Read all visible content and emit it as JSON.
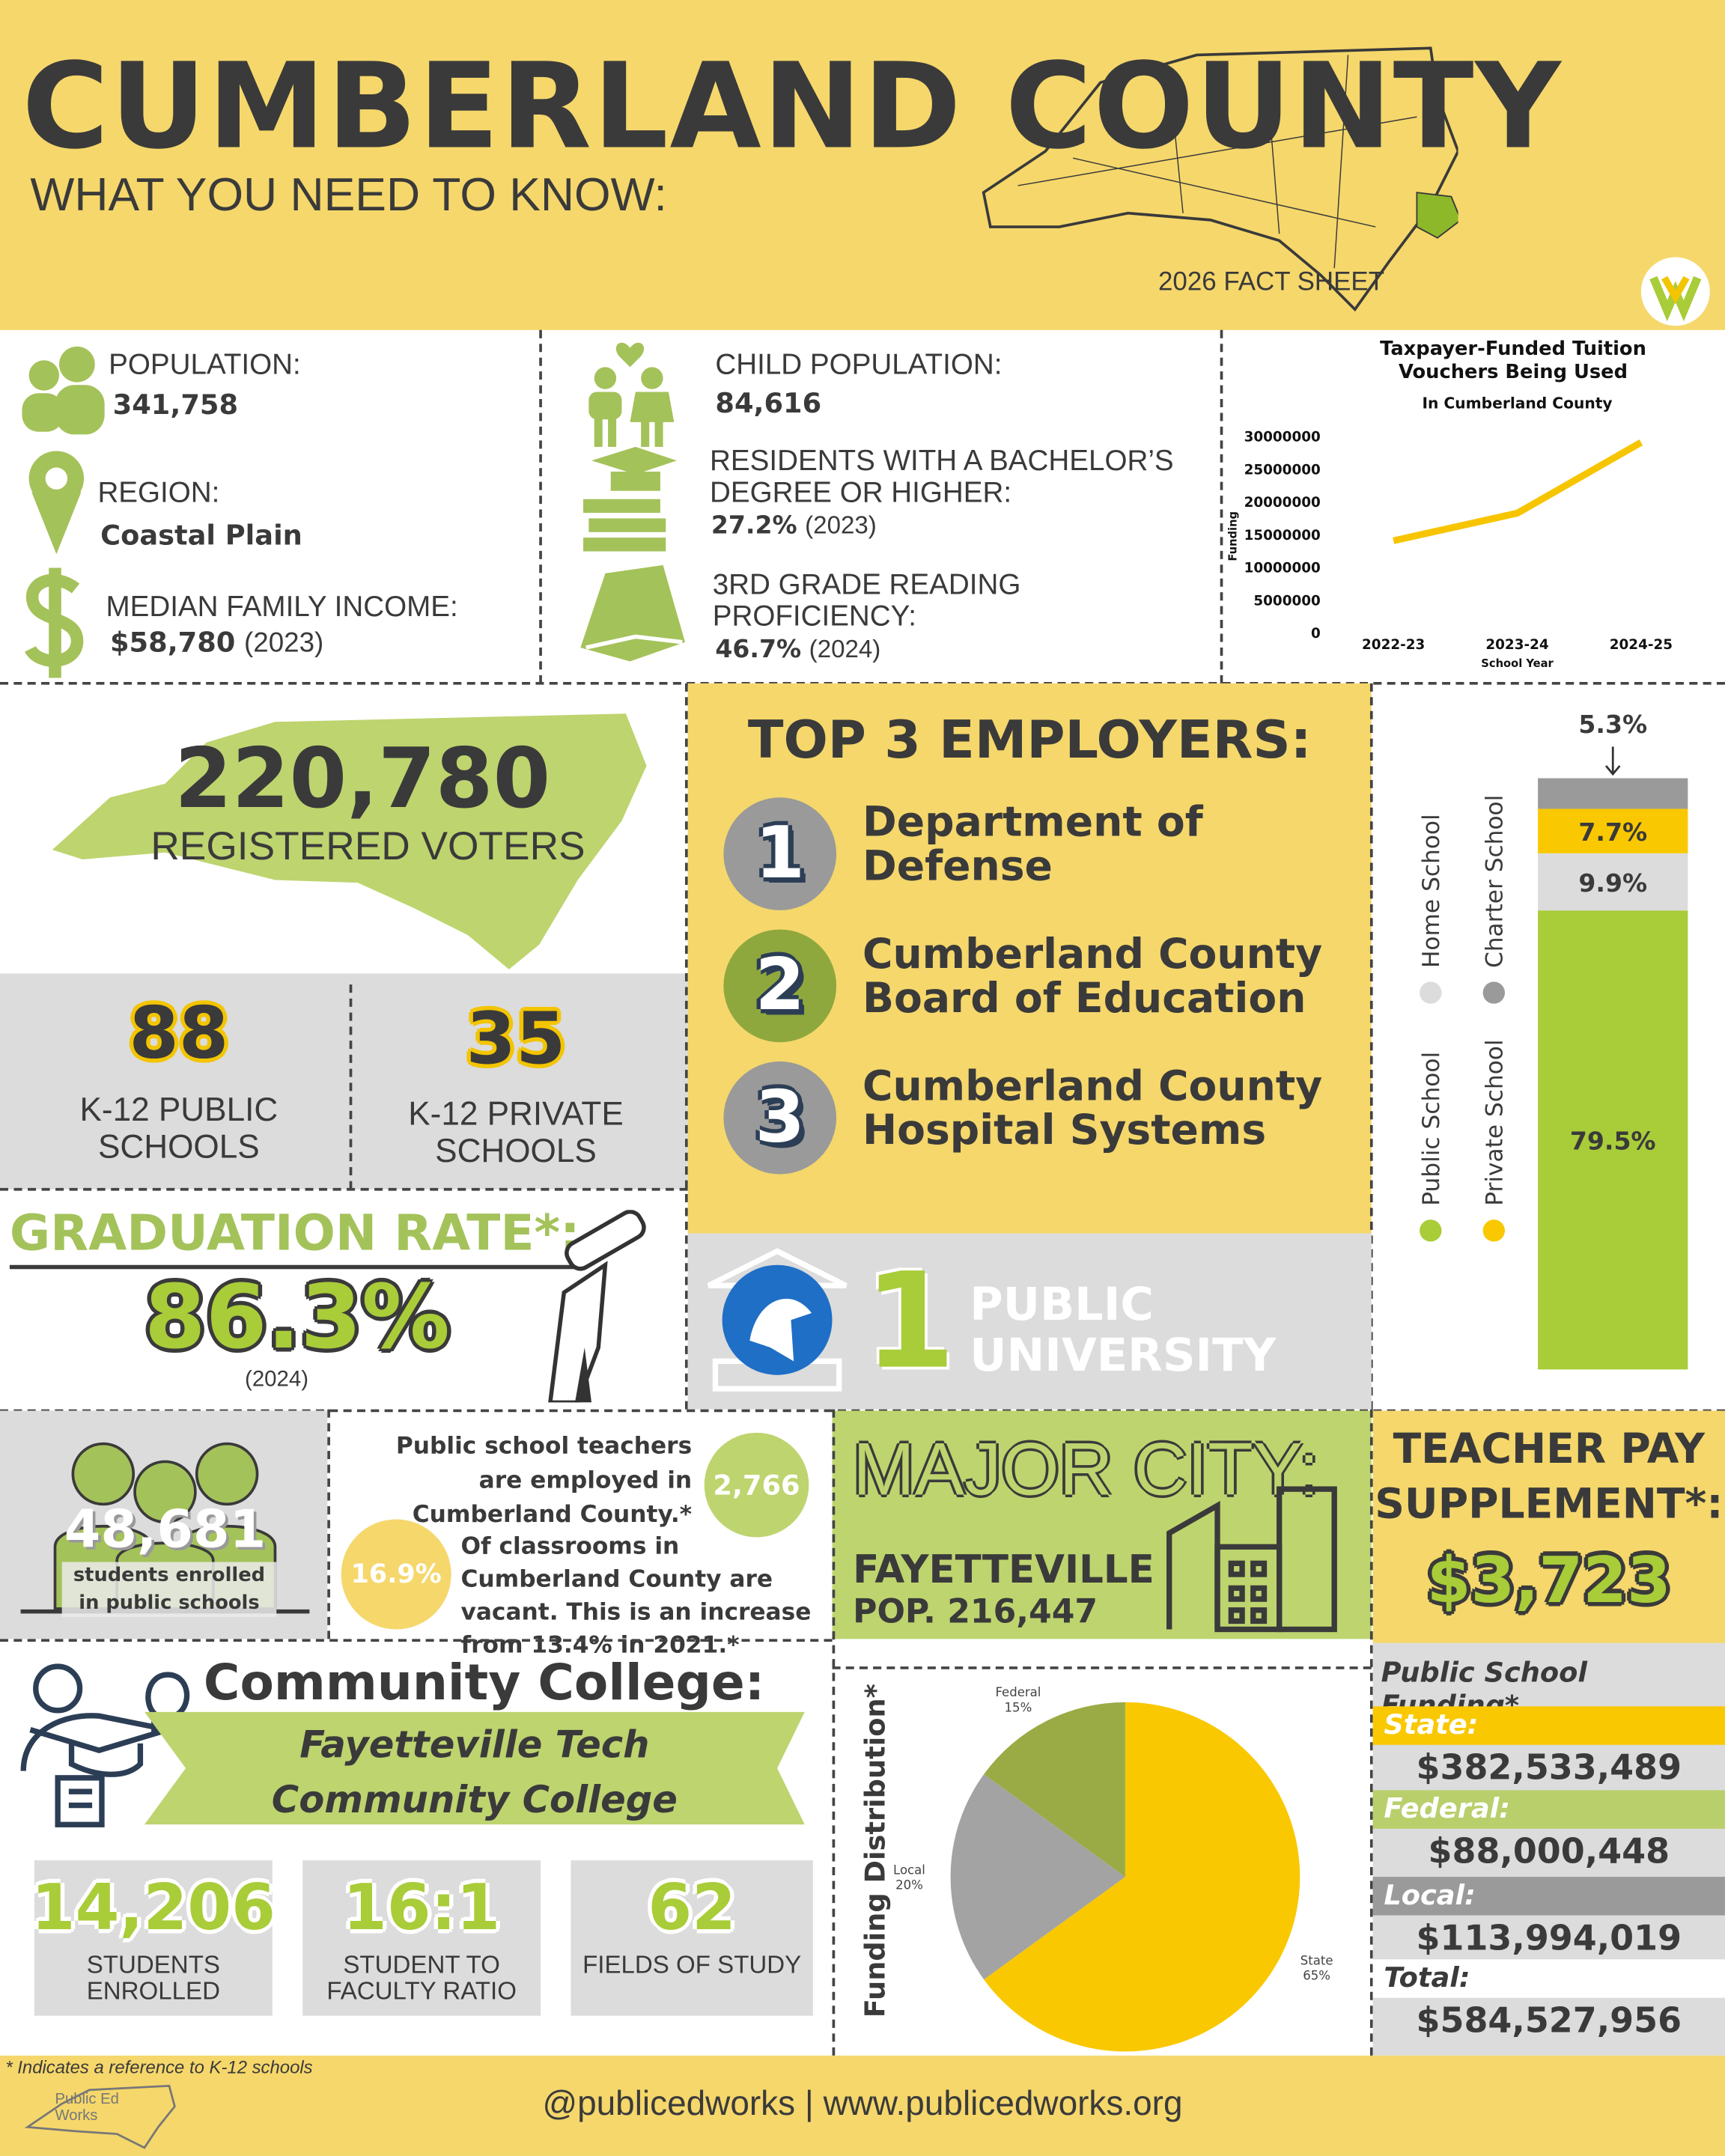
{
  "header": {
    "title": "CUMBERLAND COUNTY",
    "subtitle": "WHAT YOU NEED TO KNOW:",
    "tag": "2026 FACT SHEET"
  },
  "facts": {
    "population": {
      "label": "POPULATION:",
      "value": "341,758"
    },
    "region": {
      "label": "REGION:",
      "value": "Coastal Plain"
    },
    "income": {
      "label": "MEDIAN FAMILY INCOME:",
      "value": "$58,780",
      "year": "(2023)"
    },
    "child_population": {
      "label": "CHILD POPULATION:",
      "value": "84,616"
    },
    "bachelor": {
      "label": "RESIDENTS WITH A BACHELOR’S DEGREE OR HIGHER:",
      "value": "27.2%",
      "year": "(2023)"
    },
    "reading": {
      "label": "3RD GRADE READING PROFICIENCY:",
      "value": "46.7%",
      "year": "(2024)"
    }
  },
  "voters": {
    "value": "220,780",
    "label": "REGISTERED VOTERS"
  },
  "schools": [
    {
      "value": "88",
      "label": "K-12 PUBLIC SCHOOLS"
    },
    {
      "value": "35",
      "label": "K-12 PRIVATE SCHOOLS"
    }
  ],
  "graduation": {
    "label": "GRADUATION RATE*:",
    "value": "86.3%",
    "year": "(2024)"
  },
  "employers": {
    "title": "TOP 3 EMPLOYERS:",
    "items": [
      {
        "rank": "1",
        "name": "Department of Defense"
      },
      {
        "rank": "2",
        "name": "Cumberland County Board of Education"
      },
      {
        "rank": "3",
        "name": "Cumberland County Hospital Systems"
      }
    ]
  },
  "university": {
    "count": "1",
    "label": "PUBLIC UNIVERSITY"
  },
  "enrollment": {
    "value": "48,681",
    "label": "students enrolled in public schools"
  },
  "teachers": {
    "text": "Public school teachers are employed in Cumberland County.*",
    "value": "2,766"
  },
  "vacancies": {
    "value": "16.9%",
    "text": "Of classrooms in Cumberland County are vacant. This is an increase from 13.4% in 2021.*"
  },
  "major_city": {
    "title": "MAJOR CITY:",
    "name": "FAYETTEVILLE",
    "population": "POP. 216,447"
  },
  "teacher_pay": {
    "title": "TEACHER PAY SUPPLEMENT*:",
    "value": "$3,723"
  },
  "community_college": {
    "title": "Community College:",
    "name": "Fayetteville Tech Community College",
    "stats": [
      {
        "value": "14,206",
        "label": "STUDENTS ENROLLED"
      },
      {
        "value": "16:1",
        "label": "STUDENT TO FACULTY RATIO"
      },
      {
        "value": "62",
        "label": "FIELDS OF STUDY"
      }
    ]
  },
  "funding": {
    "title": "Public School Funding*",
    "rows": [
      {
        "label": "State:",
        "value": "$382,533,489",
        "color": "#f9c800"
      },
      {
        "label": "Federal:",
        "value": "$88,000,448",
        "color": "#b9cf6c"
      },
      {
        "label": "Local:",
        "value": "$113,994,019",
        "color": "#9a9a9a"
      },
      {
        "label": "Total:",
        "value": "$584,527,956",
        "color": "#ffffff"
      }
    ]
  },
  "footer": {
    "note": "* Indicates a reference to K-12 schools",
    "links": "@publicedworks | www.publicedworks.org",
    "logo": "Public Ed Works"
  },
  "chart_data": [
    {
      "type": "line",
      "title": "Taxpayer-Funded Tuition Vouchers Being Used",
      "subtitle": "In Cumberland County",
      "y_label": "Funding",
      "x_label": "School Year",
      "categories": [
        "2022-23",
        "2023-24",
        "2024-25"
      ],
      "values": [
        14000000,
        18200000,
        29000000
      ],
      "color": "#f7c500",
      "ylim": [
        0,
        30000000
      ],
      "yticks": [
        0,
        5000000,
        10000000,
        15000000,
        20000000,
        25000000,
        30000000
      ]
    },
    {
      "type": "stacked_bar",
      "series": [
        {
          "name": "Public School",
          "color": "#a9cc39",
          "values": [
            79.5
          ],
          "value_labels": [
            "79.5%"
          ]
        },
        {
          "name": "Home School",
          "color": "#dcdcdc",
          "values": [
            9.9
          ],
          "value_labels": [
            "9.9%"
          ]
        },
        {
          "name": "Private School",
          "color": "#f9c800",
          "values": [
            7.7
          ],
          "value_labels": [
            "7.7%"
          ]
        },
        {
          "name": "Charter School",
          "color": "#9a9a9a",
          "values": [
            5.3
          ],
          "value_labels": [
            "5.3%"
          ]
        }
      ]
    },
    {
      "type": "pie",
      "title": "Funding Distribution*",
      "categories": [
        "State",
        "Local",
        "Federal"
      ],
      "values": [
        65,
        20,
        15
      ],
      "value_labels": [
        "65%",
        "20%",
        "15%"
      ],
      "colors": [
        "#f9c800",
        "#a3a3a3",
        "#9aab45"
      ]
    }
  ]
}
